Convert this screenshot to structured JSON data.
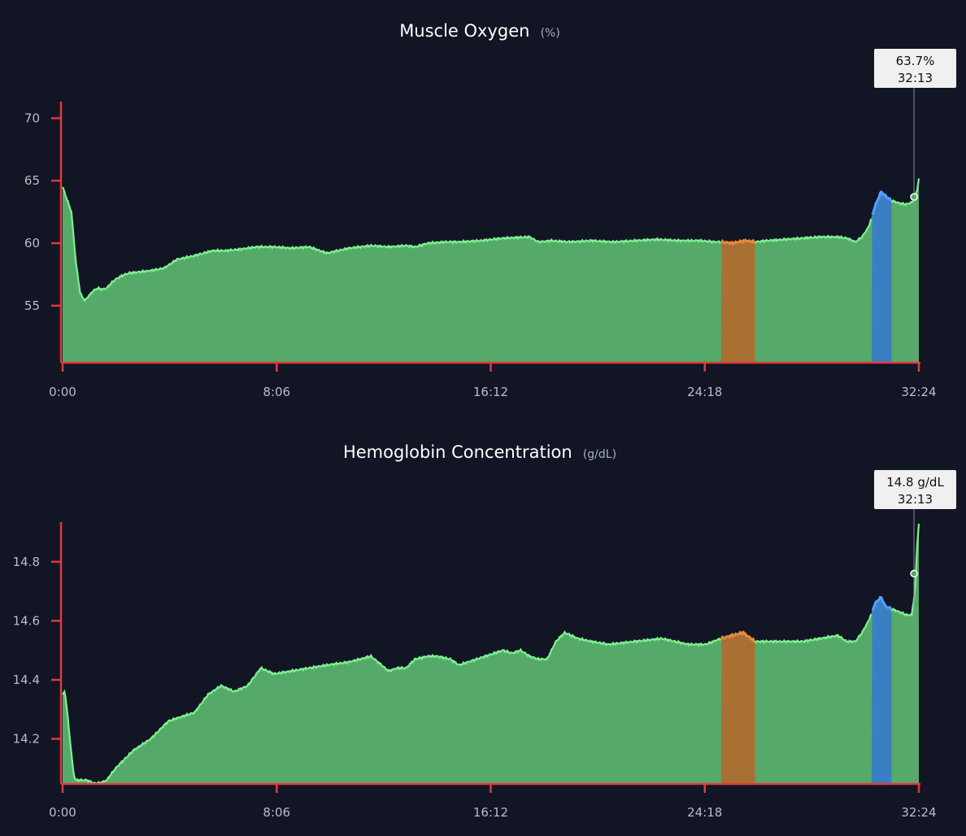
{
  "colors": {
    "background": "#111524",
    "axis": "#e03a3a",
    "fill_green": "#55aa6a",
    "line_green": "#7ef08f",
    "fill_orange": "#a87133",
    "line_orange": "#e88a3a",
    "fill_blue": "#3a7fc4",
    "line_blue": "#4fa3ff",
    "tooltip_bg": "#f0f0f0"
  },
  "chart_data": [
    {
      "type": "area",
      "title": "Muscle Oxygen",
      "unit": "(%)",
      "x_ticks": [
        "0:00",
        "8:06",
        "16:12",
        "24:18",
        "32:24"
      ],
      "xlim": [
        0,
        1944
      ],
      "ylim": [
        50.5,
        71
      ],
      "y_ticks": [
        55,
        60,
        65,
        70
      ],
      "grid": false,
      "highlight_ranges": [
        {
          "zone": "orange",
          "start": 1495,
          "end": 1572
        },
        {
          "zone": "blue",
          "start": 1837,
          "end": 1882
        }
      ],
      "cursor": {
        "x": 1933,
        "value_label": "63.7%",
        "time_label": "32:13",
        "value": 63.7
      },
      "x": [
        0,
        10,
        20,
        30,
        40,
        50,
        60,
        70,
        80,
        90,
        100,
        110,
        120,
        135,
        150,
        175,
        200,
        230,
        260,
        300,
        340,
        370,
        400,
        440,
        480,
        520,
        560,
        600,
        650,
        700,
        740,
        780,
        800,
        830,
        870,
        900,
        950,
        1000,
        1060,
        1080,
        1110,
        1150,
        1200,
        1250,
        1300,
        1350,
        1400,
        1450,
        1480,
        1495,
        1520,
        1550,
        1572,
        1600,
        1640,
        1680,
        1720,
        1760,
        1780,
        1800,
        1815,
        1830,
        1845,
        1858,
        1868,
        1882,
        1900,
        1915,
        1930,
        1940,
        1944
      ],
      "y": [
        64.5,
        63.5,
        62.5,
        58.5,
        56.0,
        55.4,
        55.8,
        56.2,
        56.4,
        56.3,
        56.4,
        56.8,
        57.1,
        57.4,
        57.6,
        57.7,
        57.8,
        58.0,
        58.7,
        59.0,
        59.4,
        59.4,
        59.5,
        59.7,
        59.7,
        59.6,
        59.7,
        59.2,
        59.6,
        59.8,
        59.7,
        59.8,
        59.7,
        60.0,
        60.1,
        60.1,
        60.2,
        60.4,
        60.5,
        60.1,
        60.2,
        60.1,
        60.2,
        60.1,
        60.2,
        60.3,
        60.2,
        60.2,
        60.1,
        60.1,
        60.0,
        60.2,
        60.1,
        60.2,
        60.3,
        60.4,
        60.5,
        60.5,
        60.4,
        60.1,
        60.5,
        61.3,
        63.0,
        64.1,
        63.8,
        63.4,
        63.2,
        63.1,
        63.3,
        64.2,
        65.2
      ]
    },
    {
      "type": "area",
      "title": "Hemoglobin Concentration",
      "unit": "(g/dL)",
      "x_ticks": [
        "0:00",
        "8:06",
        "16:12",
        "24:18",
        "32:24"
      ],
      "xlim": [
        0,
        1944
      ],
      "ylim": [
        14.05,
        14.94
      ],
      "y_ticks": [
        14.2,
        14.4,
        14.6,
        14.8
      ],
      "grid": false,
      "highlight_ranges": [
        {
          "zone": "orange",
          "start": 1495,
          "end": 1572
        },
        {
          "zone": "blue",
          "start": 1837,
          "end": 1882
        }
      ],
      "cursor": {
        "x": 1933,
        "value_label": "14.8 g/dL",
        "time_label": "32:13",
        "value": 14.76
      },
      "x": [
        0,
        5,
        10,
        15,
        20,
        25,
        30,
        40,
        55,
        70,
        85,
        100,
        120,
        140,
        160,
        200,
        240,
        280,
        300,
        330,
        360,
        390,
        420,
        450,
        480,
        520,
        560,
        600,
        650,
        700,
        740,
        760,
        780,
        800,
        830,
        850,
        880,
        900,
        940,
        980,
        1000,
        1020,
        1040,
        1060,
        1080,
        1100,
        1120,
        1140,
        1170,
        1200,
        1240,
        1300,
        1360,
        1420,
        1460,
        1495,
        1520,
        1545,
        1572,
        1600,
        1640,
        1680,
        1720,
        1760,
        1780,
        1800,
        1815,
        1830,
        1845,
        1858,
        1868,
        1882,
        1900,
        1915,
        1928,
        1935,
        1940,
        1944
      ],
      "y": [
        14.35,
        14.36,
        14.3,
        14.22,
        14.15,
        14.08,
        14.06,
        14.06,
        14.06,
        14.05,
        14.05,
        14.06,
        14.1,
        14.13,
        14.16,
        14.2,
        14.26,
        14.28,
        14.29,
        14.35,
        14.38,
        14.36,
        14.38,
        14.44,
        14.42,
        14.43,
        14.44,
        14.45,
        14.46,
        14.48,
        14.43,
        14.44,
        14.44,
        14.47,
        14.48,
        14.48,
        14.47,
        14.45,
        14.47,
        14.49,
        14.5,
        14.49,
        14.5,
        14.48,
        14.47,
        14.47,
        14.53,
        14.56,
        14.54,
        14.53,
        14.52,
        14.53,
        14.54,
        14.52,
        14.52,
        14.54,
        14.55,
        14.56,
        14.53,
        14.53,
        14.53,
        14.53,
        14.54,
        14.55,
        14.53,
        14.53,
        14.56,
        14.6,
        14.66,
        14.68,
        14.65,
        14.64,
        14.63,
        14.62,
        14.62,
        14.7,
        14.85,
        14.93
      ]
    }
  ]
}
